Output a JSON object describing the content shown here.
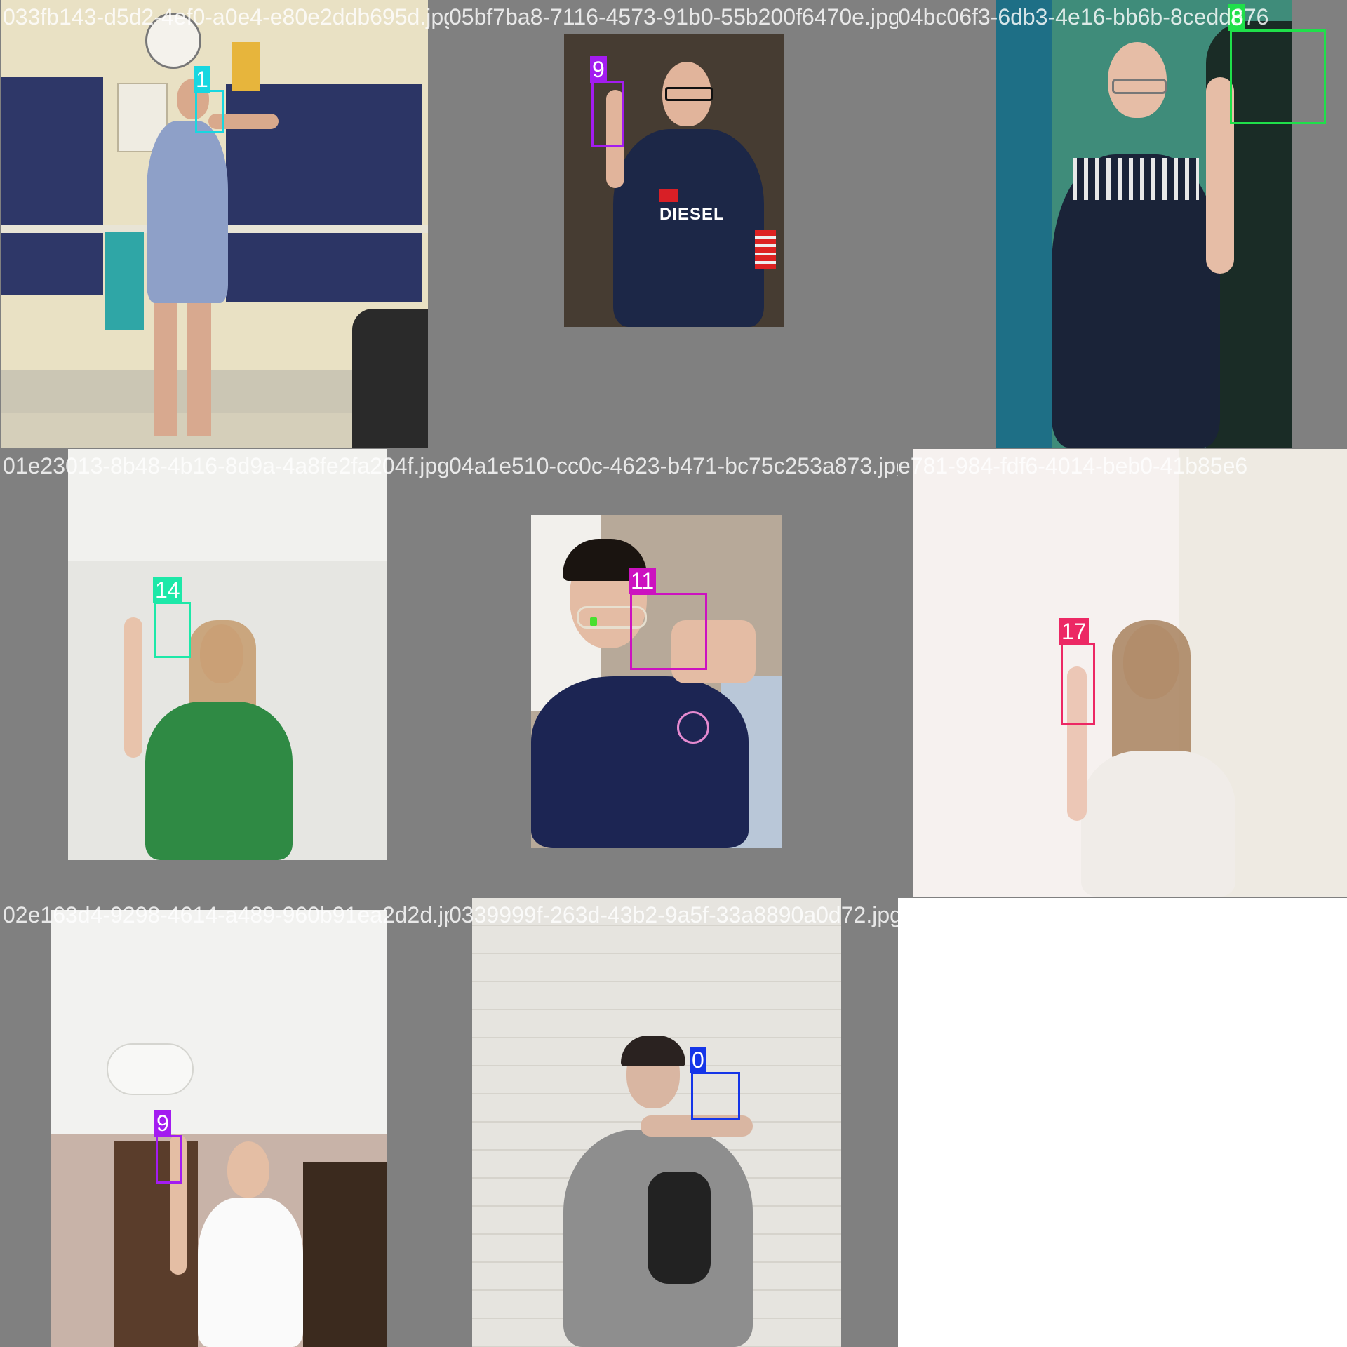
{
  "tiles": [
    {
      "filename": "033fb143-d5d2-4ef0-a0e4-e80e2ddb695d.jpg",
      "label": "1",
      "color": "#18d7e0"
    },
    {
      "filename": "05bf7ba8-7116-4573-91b0-55b200f6470e.jpg",
      "label": "9",
      "color": "#a31cf0"
    },
    {
      "filename": "04bc06f3-6db3-4e16-bb6b-8cedd676",
      "label": "8",
      "color": "#1fe04a"
    },
    {
      "filename": "01e23013-8b48-4b16-8d9a-4a8fe2fa204f.jpg",
      "label": "14",
      "color": "#1de8a8"
    },
    {
      "filename": "04a1e510-cc0c-4623-b471-bc75c253a873.jpg",
      "label": "11",
      "color": "#cc12c0"
    },
    {
      "filename": "e781-984-fdf6-4014-beb0-41b85e6",
      "label": "17",
      "color": "#ec2864"
    },
    {
      "filename": "02e163d4-9298-4614-a489-960b91ea2d2d.jpg",
      "label": "9",
      "color": "#a31cf0"
    },
    {
      "filename": "0339999f-263d-43b2-9a5f-33a8890a0d72.jpg",
      "label": "0",
      "color": "#1535e8"
    }
  ],
  "diesel_logo_text": "DIESEL"
}
